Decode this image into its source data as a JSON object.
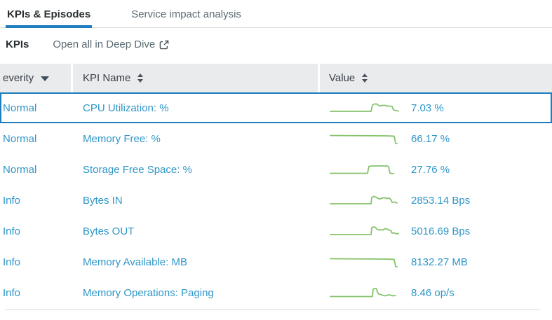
{
  "colors": {
    "accent_blue": "#1d7dbd",
    "text_blue": "#2f96c8",
    "spark_green": "#85c36b",
    "header_bg": "#e9ebed",
    "dark_text": "#2b3033",
    "gray_text": "#5c6b73",
    "divider": "#d9d9d9"
  },
  "tabs": [
    {
      "label": "KPIs & Episodes",
      "active": true
    },
    {
      "label": "Service impact analysis",
      "active": false
    }
  ],
  "kpi_section": {
    "title": "KPIs",
    "deep_dive_link": "Open all in Deep Dive",
    "deep_dive_icon": "external-link-icon"
  },
  "table": {
    "columns": [
      {
        "label": "everity",
        "sort_icon": "caret-down"
      },
      {
        "label": "KPI Name",
        "sort_icon": "sort-both"
      },
      {
        "label": "Value",
        "sort_icon": "sort-both"
      }
    ],
    "rows": [
      {
        "severity": "Normal",
        "kpi_name": "CPU Utilization: %",
        "value": "7.03 %",
        "selected": true,
        "spark": [
          [
            2,
            14
          ],
          [
            60,
            14
          ],
          [
            62,
            5
          ],
          [
            65,
            3.5
          ],
          [
            68,
            3.5
          ],
          [
            70,
            5
          ],
          [
            73,
            6.5
          ],
          [
            76,
            5.5
          ],
          [
            80,
            5.5
          ],
          [
            83,
            6.5
          ],
          [
            87,
            6.5
          ],
          [
            90,
            7
          ],
          [
            92,
            12
          ],
          [
            96,
            13
          ],
          [
            99,
            13.5
          ]
        ]
      },
      {
        "severity": "Normal",
        "kpi_name": "Memory Free: %",
        "value": "66.17 %",
        "selected": false,
        "spark": [
          [
            2,
            4.5
          ],
          [
            80,
            5
          ],
          [
            90,
            5.3
          ],
          [
            93,
            5.5
          ],
          [
            95,
            15.5
          ],
          [
            97,
            16
          ]
        ]
      },
      {
        "severity": "Normal",
        "kpi_name": "Storage Free Space: %",
        "value": "27.76 %",
        "selected": false,
        "spark": [
          [
            2,
            14.5
          ],
          [
            55,
            14.5
          ],
          [
            57,
            4.5
          ],
          [
            61,
            4
          ],
          [
            83,
            4
          ],
          [
            85,
            5
          ],
          [
            87,
            14.5
          ],
          [
            92,
            15
          ]
        ]
      },
      {
        "severity": "Info",
        "kpi_name": "Bytes IN",
        "value": "2853.14 Bps",
        "selected": false,
        "spark": [
          [
            2,
            14
          ],
          [
            60,
            14
          ],
          [
            61,
            5
          ],
          [
            64,
            3.5
          ],
          [
            67,
            4.5
          ],
          [
            70,
            6.5
          ],
          [
            73,
            7
          ],
          [
            77,
            5.5
          ],
          [
            80,
            5.5
          ],
          [
            83,
            6.5
          ],
          [
            86,
            6
          ],
          [
            88,
            7.5
          ],
          [
            90,
            12
          ],
          [
            94,
            11.5
          ],
          [
            97,
            13
          ]
        ]
      },
      {
        "severity": "Info",
        "kpi_name": "Bytes OUT",
        "value": "5016.69 Bps",
        "selected": false,
        "spark": [
          [
            2,
            14
          ],
          [
            60,
            14
          ],
          [
            61,
            4.5
          ],
          [
            63,
            3
          ],
          [
            66,
            3.5
          ],
          [
            68,
            6
          ],
          [
            71,
            7.5
          ],
          [
            74,
            7
          ],
          [
            77,
            7.5
          ],
          [
            80,
            5.5
          ],
          [
            83,
            6
          ],
          [
            85,
            7.5
          ],
          [
            88,
            8
          ],
          [
            90,
            12
          ],
          [
            93,
            11.5
          ],
          [
            96,
            13
          ],
          [
            99,
            12.5
          ]
        ]
      },
      {
        "severity": "Info",
        "kpi_name": "Memory Available: MB",
        "value": "8132.27 MB",
        "selected": false,
        "spark": [
          [
            2,
            4.5
          ],
          [
            80,
            5
          ],
          [
            90,
            5.3
          ],
          [
            93,
            5.5
          ],
          [
            95,
            15.5
          ],
          [
            97,
            16
          ]
        ]
      },
      {
        "severity": "Info",
        "kpi_name": "Memory Operations: Paging",
        "value": "8.46 op/s",
        "selected": false,
        "spark": [
          [
            2,
            14.5
          ],
          [
            62,
            14.5
          ],
          [
            63,
            4
          ],
          [
            65,
            3
          ],
          [
            68,
            3.5
          ],
          [
            69,
            8
          ],
          [
            71,
            11
          ],
          [
            74,
            11.5
          ],
          [
            77,
            13
          ],
          [
            80,
            13.5
          ],
          [
            83,
            12.5
          ],
          [
            86,
            12
          ],
          [
            89,
            13
          ],
          [
            92,
            13.5
          ],
          [
            95,
            13
          ]
        ]
      }
    ]
  }
}
